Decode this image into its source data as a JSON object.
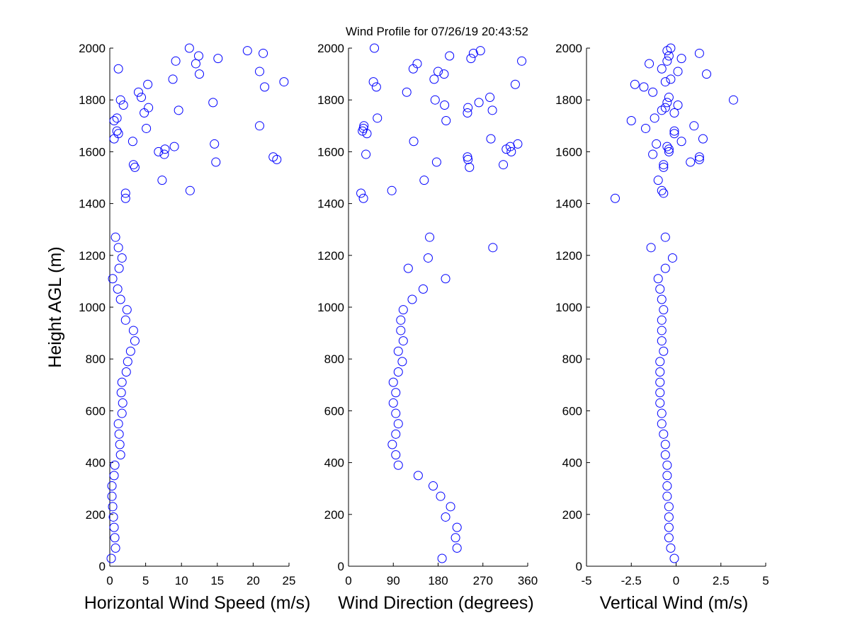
{
  "title": "Wind Profile for  07/26/19 20:43:52",
  "chart_data": [
    {
      "type": "scatter",
      "xlabel": "Horizontal Wind Speed (m/s)",
      "ylabel": "Height AGL (m)",
      "color": "#0000ff",
      "xlim": [
        0,
        25
      ],
      "xticks": [
        0,
        5,
        10,
        15,
        20,
        25
      ],
      "ylim": [
        0,
        2000
      ],
      "yticks": [
        0,
        200,
        400,
        600,
        800,
        1000,
        1200,
        1400,
        1600,
        1800,
        2000
      ],
      "x": [
        0.2,
        0.8,
        0.7,
        0.6,
        0.5,
        0.4,
        0.3,
        0.3,
        0.6,
        0.7,
        1.5,
        1.4,
        1.3,
        1.2,
        1.7,
        1.8,
        1.6,
        1.7,
        2.3,
        2.5,
        2.9,
        3.5,
        3.3,
        2.2,
        2.4,
        1.5,
        1.1,
        0.4,
        1.3,
        1.7,
        1.2,
        0.8,
        2.2,
        2.2,
        11.2,
        7.3,
        3.5,
        3.3,
        14.8,
        23.3,
        22.8,
        7.6,
        6.8,
        7.7,
        9.0,
        14.6,
        3.2,
        0.6,
        1.2,
        1.0,
        5.1,
        20.9,
        0.6,
        1.0,
        4.8,
        9.6,
        5.4,
        1.9,
        14.4,
        1.5,
        4.4,
        4.0,
        21.6,
        5.3,
        24.3,
        8.8,
        12.5,
        20.9,
        1.2,
        12.0,
        9.2,
        15.1,
        12.4,
        21.4,
        19.2,
        11.1
      ],
      "y": [
        30,
        70,
        110,
        150,
        190,
        230,
        270,
        310,
        350,
        390,
        430,
        470,
        510,
        550,
        590,
        630,
        670,
        710,
        750,
        790,
        830,
        870,
        910,
        950,
        990,
        1030,
        1070,
        1110,
        1150,
        1190,
        1230,
        1270,
        1420,
        1440,
        1450,
        1490,
        1540,
        1550,
        1560,
        1570,
        1580,
        1590,
        1600,
        1610,
        1620,
        1630,
        1640,
        1650,
        1670,
        1680,
        1690,
        1700,
        1720,
        1730,
        1750,
        1760,
        1770,
        1780,
        1790,
        1800,
        1810,
        1830,
        1850,
        1860,
        1870,
        1880,
        1900,
        1910,
        1920,
        1940,
        1950,
        1960,
        1970,
        1980,
        1990,
        2000
      ]
    },
    {
      "type": "scatter",
      "xlabel": "Wind Direction (degrees)",
      "color": "#0000ff",
      "xlim": [
        0,
        360
      ],
      "xticks": [
        0,
        90,
        180,
        270,
        360
      ],
      "ylim": [
        0,
        2000
      ],
      "yticks": [
        0,
        200,
        400,
        600,
        800,
        1000,
        1200,
        1400,
        1600,
        1800,
        2000
      ],
      "x": [
        188,
        218,
        215,
        218,
        195,
        205,
        185,
        170,
        140,
        100,
        95,
        88,
        95,
        100,
        95,
        90,
        95,
        90,
        100,
        108,
        100,
        110,
        105,
        105,
        110,
        128,
        150,
        195,
        120,
        160,
        290,
        163,
        30,
        25,
        87,
        152,
        243,
        311,
        177,
        240,
        239,
        35,
        327,
        317,
        325,
        340,
        131,
        286,
        37,
        28,
        30,
        31,
        196,
        58,
        239,
        289,
        240,
        193,
        262,
        174,
        284,
        117,
        56,
        335,
        50,
        172,
        192,
        180,
        130,
        138,
        348,
        246,
        203,
        251,
        265,
        52
      ],
      "y": [
        30,
        70,
        110,
        150,
        190,
        230,
        270,
        310,
        350,
        390,
        430,
        470,
        510,
        550,
        590,
        630,
        670,
        710,
        750,
        790,
        830,
        870,
        910,
        950,
        990,
        1030,
        1070,
        1110,
        1150,
        1190,
        1230,
        1270,
        1420,
        1440,
        1450,
        1490,
        1540,
        1550,
        1560,
        1570,
        1580,
        1590,
        1600,
        1610,
        1620,
        1630,
        1640,
        1650,
        1670,
        1680,
        1690,
        1700,
        1720,
        1730,
        1750,
        1760,
        1770,
        1780,
        1790,
        1800,
        1810,
        1830,
        1850,
        1860,
        1870,
        1880,
        1900,
        1910,
        1920,
        1940,
        1950,
        1960,
        1970,
        1980,
        1990,
        2000
      ]
    },
    {
      "type": "scatter",
      "xlabel": "Vertical Wind (m/s)",
      "color": "#0000ff",
      "xlim": [
        -5,
        5
      ],
      "xticks": [
        -5,
        -2.5,
        0,
        2.5,
        5
      ],
      "ylim": [
        0,
        2000
      ],
      "yticks": [
        0,
        200,
        400,
        600,
        800,
        1000,
        1200,
        1400,
        1600,
        1800,
        2000
      ],
      "x": [
        -0.1,
        -0.3,
        -0.4,
        -0.4,
        -0.4,
        -0.4,
        -0.5,
        -0.5,
        -0.5,
        -0.5,
        -0.6,
        -0.6,
        -0.7,
        -0.8,
        -0.8,
        -0.9,
        -0.9,
        -0.9,
        -0.9,
        -0.9,
        -0.7,
        -0.8,
        -0.8,
        -0.8,
        -0.7,
        -0.8,
        -0.9,
        -1.0,
        -0.6,
        -0.2,
        -1.4,
        -0.6,
        -3.4,
        -0.7,
        -0.8,
        -1.0,
        -0.7,
        -0.7,
        0.8,
        1.3,
        1.3,
        -1.3,
        -0.4,
        -0.4,
        -0.5,
        -1.1,
        0.3,
        1.5,
        -0.1,
        -0.1,
        -1.7,
        1.0,
        -2.5,
        -1.2,
        -0.1,
        -0.8,
        -0.6,
        0.1,
        -0.5,
        3.2,
        -0.4,
        -1.3,
        -1.8,
        -2.3,
        -0.6,
        -0.3,
        1.7,
        0.1,
        -0.8,
        -1.5,
        -0.5,
        0.3,
        -0.4,
        1.3,
        -0.5,
        -0.3
      ],
      "y": [
        30,
        70,
        110,
        150,
        190,
        230,
        270,
        310,
        350,
        390,
        430,
        470,
        510,
        550,
        590,
        630,
        670,
        710,
        750,
        790,
        830,
        870,
        910,
        950,
        990,
        1030,
        1070,
        1110,
        1150,
        1190,
        1230,
        1270,
        1420,
        1440,
        1450,
        1490,
        1540,
        1550,
        1560,
        1570,
        1580,
        1590,
        1600,
        1610,
        1620,
        1630,
        1640,
        1650,
        1670,
        1680,
        1690,
        1700,
        1720,
        1730,
        1750,
        1760,
        1770,
        1780,
        1790,
        1800,
        1810,
        1830,
        1850,
        1860,
        1870,
        1880,
        1900,
        1910,
        1920,
        1940,
        1950,
        1960,
        1970,
        1980,
        1990,
        2000
      ]
    }
  ]
}
